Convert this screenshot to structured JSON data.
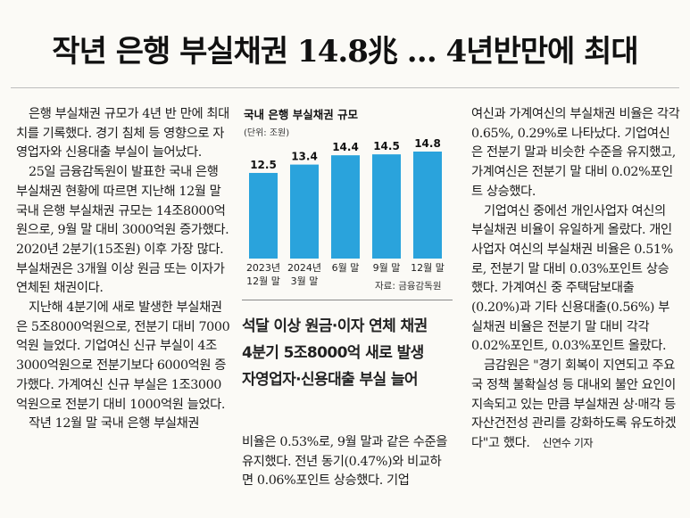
{
  "headline": "작년 은행 부실채권 14.8兆 … 4년반만에 최대",
  "col1": [
    "은행 부실채권 규모가 4년 반 만에 최대치를 기록했다. 경기 침체 등 영향으로 자영업자와 신용대출 부실이 늘어났다.",
    "25일 금융감독원이 발표한 국내 은행 부실채권 현황에 따르면 지난해 12월 말 국내 은행 부실채권 규모는 14조8000억원으로, 9월 말 대비 3000억원 증가했다. 2020년 2분기(15조원) 이후 가장 많다. 부실채권은 3개월 이상 원금 또는 이자가 연체된 채권이다.",
    "지난해 4분기에 새로 발생한 부실채권은 5조8000억원으로, 전분기 대비 7000억원 늘었다. 기업여신 신규 부실이 4조3000억원으로 전분기보다 6000억원 증가했다. 가계여신 신규 부실은 1조3000억원으로 전분기 대비 1000억원 늘었다.",
    "작년 12월 말 국내 은행 부실채권"
  ],
  "col2b": "비율은 0.53%로, 9월 말과 같은 수준을 유지했다. 전년 동기(0.47%)와 비교하면 0.06%포인트 상승했다. 기업",
  "col3": [
    "여신과 가계여신의 부실채권 비율은 각각 0.65%, 0.29%로 나타났다. 기업여신은 전분기 말과 비슷한 수준을 유지했고, 가계여신은 전분기 말 대비 0.02%포인트 상승했다.",
    "기업여신 중에선 개인사업자 여신의 부실채권 비율이 유일하게 올랐다. 개인사업자 여신의 부실채권 비율은 0.51%로, 전분기 말 대비 0.03%포인트 상승했다. 가계여신 중 주택담보대출(0.20%)과 기타 신용대출(0.56%) 부실채권 비율은 전분기 말 대비 각각 0.02%포인트, 0.03%포인트 올랐다.",
    "금감원은 \"경기 회복이 지연되고 주요국 정책 불확실성 등 대내외 불안 요인이 지속되고 있는 만큼 부실채권 상·매각 등 자산건전성 관리를 강화하도록 유도하겠다\"고 했다."
  ],
  "byline": "신연수 기자",
  "subheads": [
    "석달 이상 원금·이자 연체 채권",
    "4분기 5조8000억 새로 발생",
    "자영업자·신용대출 부실 늘어"
  ],
  "chart_data": {
    "type": "bar",
    "title": "국내 은행 부실채권 규모",
    "unit": "(단위: 조원)",
    "source": "자료: 금융감독원",
    "categories": [
      [
        "2023년",
        "12월 말"
      ],
      [
        "2024년",
        "3월 말"
      ],
      [
        "6월 말"
      ],
      [
        "9월 말"
      ],
      [
        "12월 말"
      ]
    ],
    "values": [
      12.5,
      13.4,
      14.4,
      14.5,
      14.8
    ],
    "value_labels": [
      "12.5",
      "13.4",
      "14.4",
      "14.5",
      "14.8"
    ],
    "bar_color": "#2aa3dc",
    "axis_min": 10,
    "axis_max": 14.8
  }
}
